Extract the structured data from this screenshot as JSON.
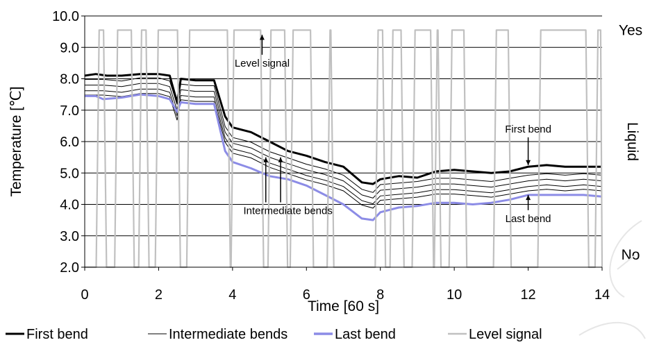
{
  "chart_data": {
    "type": "line",
    "xlabel": "Time [60 s]",
    "ylabel": "Temperature [℃]",
    "xlim": [
      0,
      14
    ],
    "ylim": [
      2.0,
      10.0
    ],
    "x_ticks": [
      0,
      2,
      4,
      6,
      8,
      10,
      12,
      14
    ],
    "y_ticks": [
      "2.0",
      "3.0",
      "4.0",
      "5.0",
      "6.0",
      "7.0",
      "8.0",
      "9.0",
      "10.0"
    ],
    "grid": "horizontal",
    "legend_position": "bottom",
    "right_axis": {
      "title": "Liquid",
      "top_label": "Yes",
      "bottom_label": "No"
    },
    "series": [
      {
        "name": "First bend",
        "color": "#000000",
        "points": [
          [
            0,
            8.1
          ],
          [
            0.3,
            8.15
          ],
          [
            0.6,
            8.1
          ],
          [
            1.0,
            8.1
          ],
          [
            1.5,
            8.15
          ],
          [
            2.0,
            8.15
          ],
          [
            2.3,
            8.1
          ],
          [
            2.5,
            7.25
          ],
          [
            2.6,
            8.0
          ],
          [
            3.0,
            7.95
          ],
          [
            3.5,
            7.95
          ],
          [
            3.8,
            6.8
          ],
          [
            4.0,
            6.45
          ],
          [
            4.5,
            6.3
          ],
          [
            5.0,
            6.0
          ],
          [
            5.5,
            5.7
          ],
          [
            6.0,
            5.55
          ],
          [
            6.5,
            5.35
          ],
          [
            7.0,
            5.2
          ],
          [
            7.5,
            4.7
          ],
          [
            7.8,
            4.65
          ],
          [
            8.0,
            4.8
          ],
          [
            8.5,
            4.9
          ],
          [
            9.0,
            4.85
          ],
          [
            9.5,
            5.05
          ],
          [
            10.0,
            5.1
          ],
          [
            10.5,
            5.05
          ],
          [
            11.0,
            5.0
          ],
          [
            11.5,
            5.05
          ],
          [
            12.0,
            5.2
          ],
          [
            12.5,
            5.25
          ],
          [
            13.0,
            5.2
          ],
          [
            13.5,
            5.2
          ],
          [
            14.0,
            5.2
          ]
        ]
      },
      {
        "name": "Intermediate bends",
        "color": "#000000",
        "points": [
          [
            0,
            7.8
          ],
          [
            0.5,
            7.8
          ],
          [
            1.0,
            7.75
          ],
          [
            1.5,
            7.85
          ],
          [
            2.0,
            7.85
          ],
          [
            2.3,
            7.75
          ],
          [
            2.5,
            7.0
          ],
          [
            2.6,
            7.65
          ],
          [
            3.0,
            7.6
          ],
          [
            3.5,
            7.6
          ],
          [
            3.8,
            6.3
          ],
          [
            4.0,
            5.95
          ],
          [
            4.5,
            5.8
          ],
          [
            5.0,
            5.5
          ],
          [
            5.5,
            5.3
          ],
          [
            6.0,
            5.1
          ],
          [
            6.5,
            4.95
          ],
          [
            7.0,
            4.75
          ],
          [
            7.5,
            4.3
          ],
          [
            7.8,
            4.2
          ],
          [
            8.0,
            4.45
          ],
          [
            8.5,
            4.5
          ],
          [
            9.0,
            4.55
          ],
          [
            9.5,
            4.65
          ],
          [
            10.0,
            4.65
          ],
          [
            10.5,
            4.6
          ],
          [
            11.0,
            4.55
          ],
          [
            11.5,
            4.65
          ],
          [
            12.0,
            4.75
          ],
          [
            12.5,
            4.8
          ],
          [
            13.0,
            4.75
          ],
          [
            13.5,
            4.8
          ],
          [
            14.0,
            4.75
          ]
        ]
      },
      {
        "name": "Last bend",
        "color": "#8c8ce6",
        "points": [
          [
            0,
            7.45
          ],
          [
            0.3,
            7.45
          ],
          [
            0.5,
            7.35
          ],
          [
            1.0,
            7.4
          ],
          [
            1.5,
            7.5
          ],
          [
            2.0,
            7.45
          ],
          [
            2.3,
            7.35
          ],
          [
            2.5,
            6.95
          ],
          [
            2.6,
            7.25
          ],
          [
            3.0,
            7.2
          ],
          [
            3.5,
            7.2
          ],
          [
            3.8,
            5.7
          ],
          [
            4.0,
            5.35
          ],
          [
            4.5,
            5.15
          ],
          [
            5.0,
            4.9
          ],
          [
            5.5,
            4.8
          ],
          [
            6.0,
            4.6
          ],
          [
            6.5,
            4.3
          ],
          [
            7.0,
            4.0
          ],
          [
            7.5,
            3.55
          ],
          [
            7.8,
            3.5
          ],
          [
            8.0,
            3.75
          ],
          [
            8.5,
            3.9
          ],
          [
            9.0,
            3.95
          ],
          [
            9.5,
            4.05
          ],
          [
            10.0,
            4.05
          ],
          [
            10.5,
            4.0
          ],
          [
            11.0,
            4.05
          ],
          [
            11.5,
            4.15
          ],
          [
            12.0,
            4.3
          ],
          [
            12.5,
            4.3
          ],
          [
            13.0,
            4.3
          ],
          [
            13.5,
            4.3
          ],
          [
            14.0,
            4.25
          ]
        ]
      },
      {
        "name": "Level signal",
        "color": "#c0c0c0",
        "levels": {
          "Yes": 9.55,
          "No": 2.0
        },
        "yes_intervals": [
          [
            0.35,
            0.55
          ],
          [
            0.85,
            1.3
          ],
          [
            1.5,
            1.7
          ],
          [
            1.95,
            2.55
          ],
          [
            2.8,
            3.9
          ],
          [
            4.0,
            4.8
          ],
          [
            5.0,
            5.45
          ],
          [
            5.6,
            6.15
          ],
          [
            6.6,
            6.7
          ],
          [
            7.9,
            8.1
          ],
          [
            8.3,
            8.6
          ],
          [
            8.9,
            9.4
          ],
          [
            9.5,
            9.6
          ],
          [
            9.9,
            10.3
          ],
          [
            11.1,
            11.5
          ],
          [
            12.3,
            13.6
          ],
          [
            13.85,
            14.0
          ]
        ]
      }
    ],
    "annotations": [
      {
        "text": "Level signal",
        "x": 4.8,
        "y": 8.5,
        "arrow_to": [
          4.8,
          9.4
        ]
      },
      {
        "text": "First bend",
        "x": 12.0,
        "y": 6.4,
        "arrow_to": [
          12.0,
          5.25
        ]
      },
      {
        "text": "Intermediate bends",
        "x": 5.5,
        "y": 3.8,
        "arrow_to": [
          [
            4.9,
            5.5
          ],
          [
            5.3,
            5.5
          ]
        ]
      },
      {
        "text": "Last bend",
        "x": 12.0,
        "y": 3.55,
        "arrow_to": [
          12.0,
          4.3
        ]
      }
    ]
  }
}
